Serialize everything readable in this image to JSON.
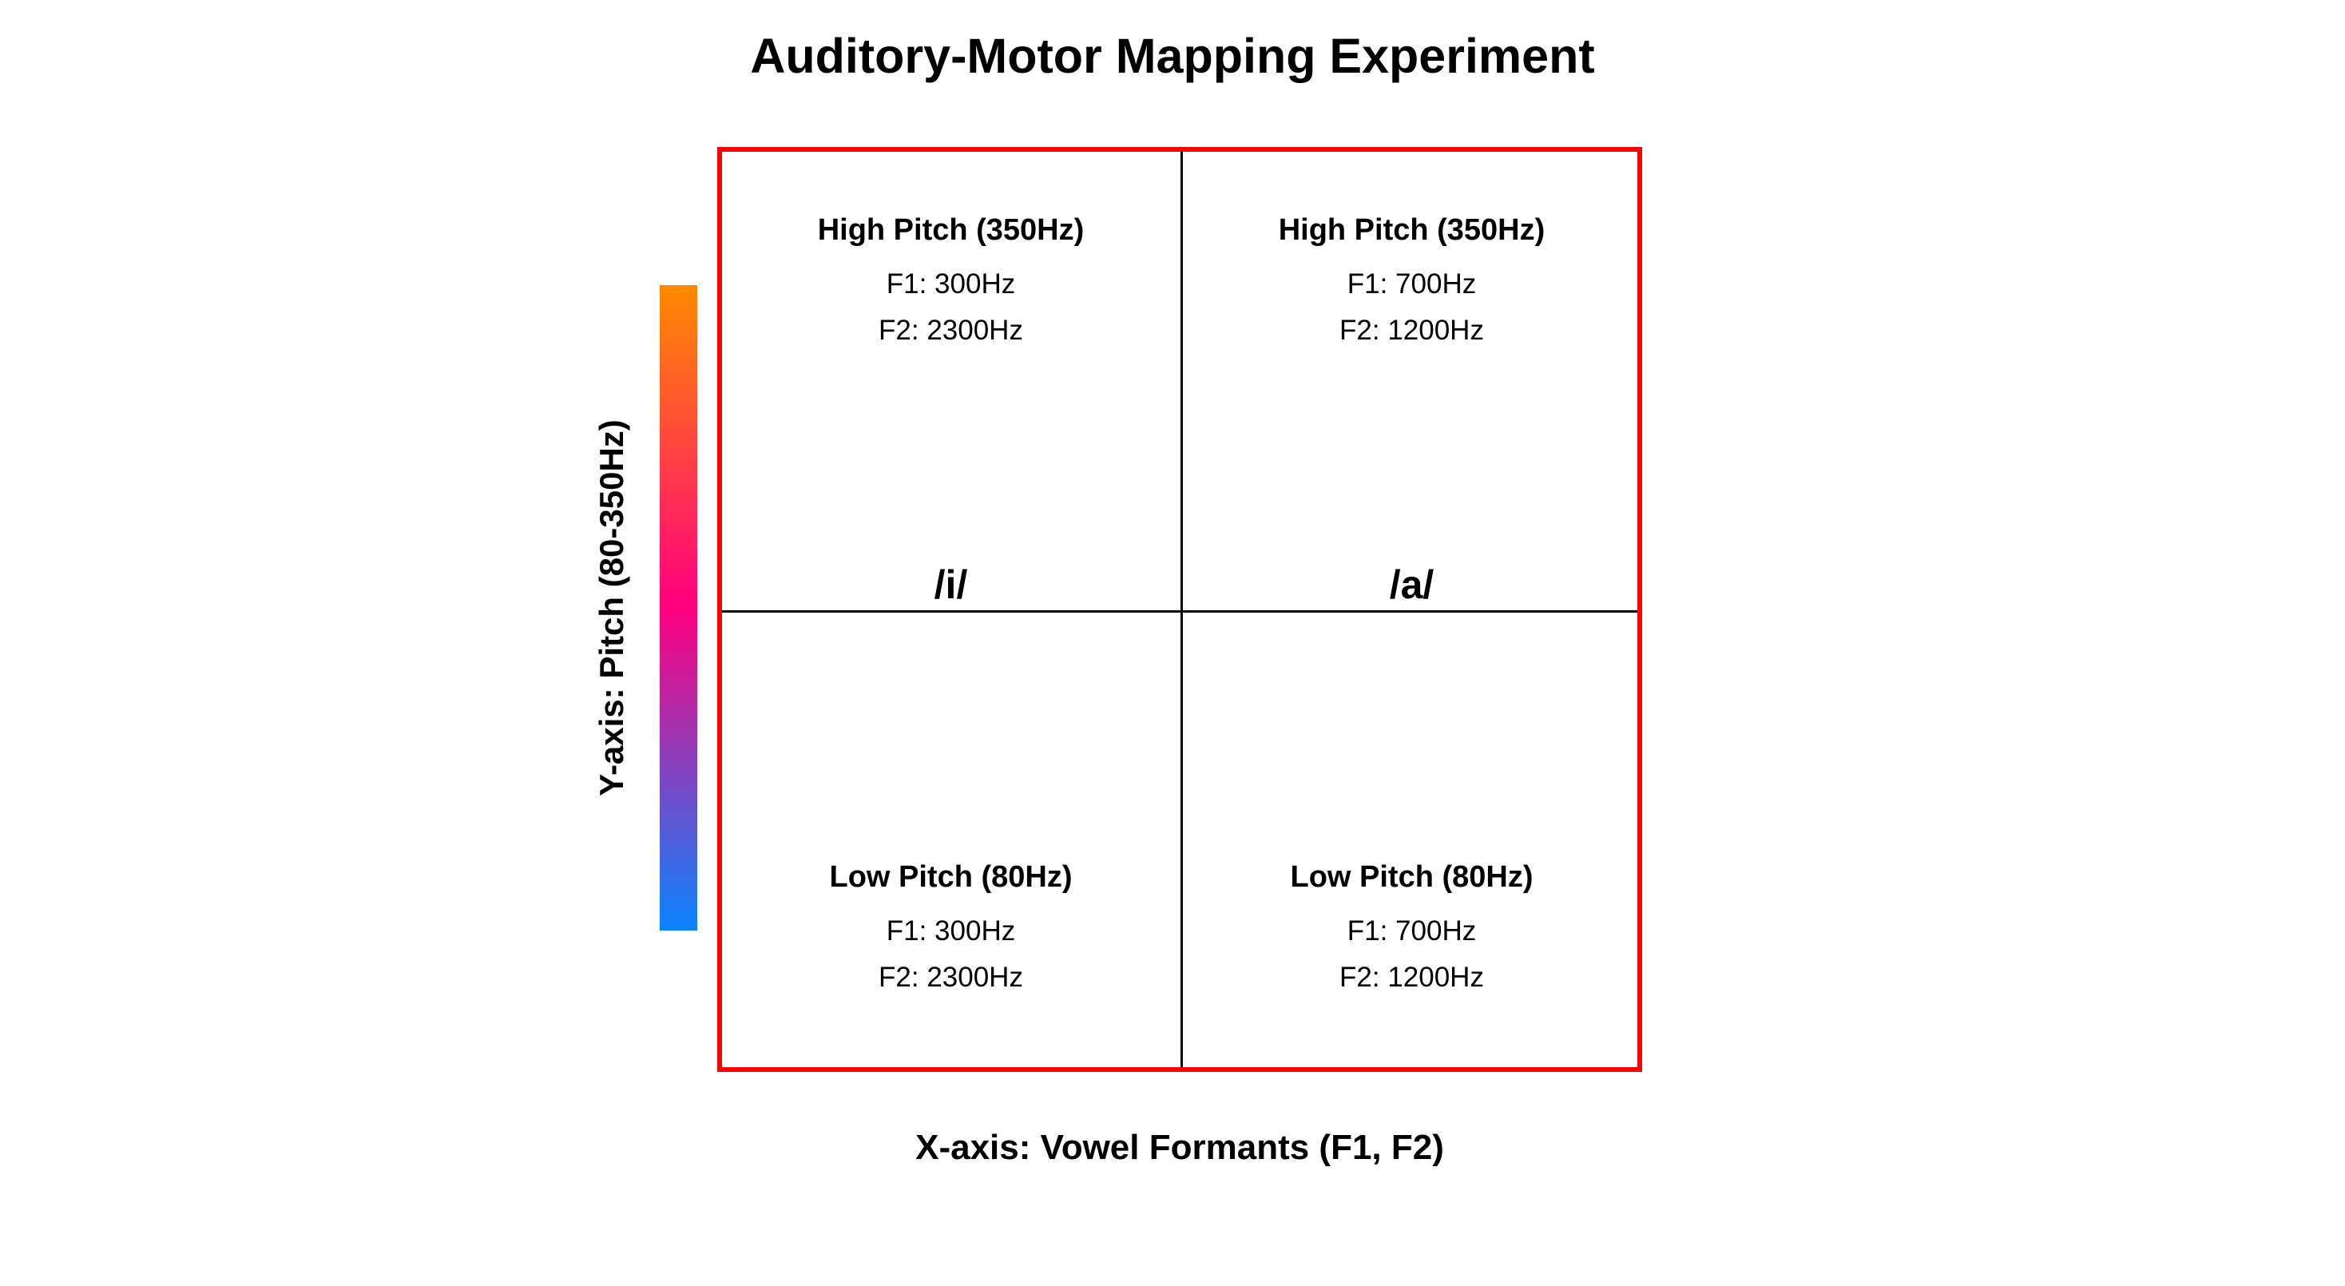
{
  "title": "Auditory-Motor Mapping Experiment",
  "x_axis_label": "X-axis: Vowel Formants (F1, F2)",
  "y_axis_label": "Y-axis: Pitch (80-350Hz)",
  "pitch_gradient": {
    "top_color": "#ff8a00",
    "middle_color": "#ff007f",
    "bottom_color": "#0a84ff"
  },
  "grid_border_color": "#ff0000",
  "quadrants": {
    "top_left": {
      "heading": "High Pitch (350Hz)",
      "f1": "F1: 300Hz",
      "f2": "F2: 2300Hz",
      "vowel": "/i/"
    },
    "top_right": {
      "heading": "High Pitch (350Hz)",
      "f1": "F1: 700Hz",
      "f2": "F2: 1200Hz",
      "vowel": "/a/"
    },
    "bottom_left": {
      "heading": "Low Pitch (80Hz)",
      "f1": "F1: 300Hz",
      "f2": "F2: 2300Hz"
    },
    "bottom_right": {
      "heading": "Low Pitch (80Hz)",
      "f1": "F1: 700Hz",
      "f2": "F2: 1200Hz"
    }
  }
}
